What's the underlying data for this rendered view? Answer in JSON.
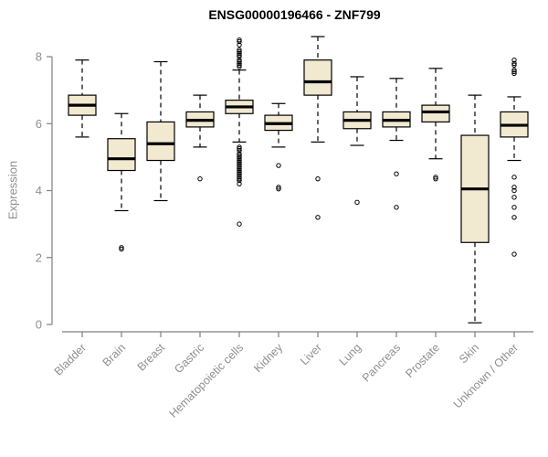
{
  "chart_data": {
    "type": "boxplot",
    "title": "ENSG00000196466 - ZNF799",
    "ylabel": "Expression",
    "ylim": [
      0,
      8.8
    ],
    "yticks": [
      0,
      2,
      4,
      6,
      8
    ],
    "legend": "none",
    "grid": false,
    "colors": {
      "box_fill": "#f1e9d0",
      "box_stroke": "#000000",
      "median": "#000000",
      "whisker": "#000000",
      "axis": "#7f7f7f",
      "tick_text": "#8f8f8f",
      "title_text": "#000000"
    },
    "categories": [
      "Bladder",
      "Brain",
      "Breast",
      "Gastric",
      "Hematopoietic cells",
      "Kidney",
      "Liver",
      "Lung",
      "Pancreas",
      "Prostate",
      "Skin",
      "Unknown / Other"
    ],
    "series": [
      {
        "name": "Bladder",
        "low": 5.6,
        "q1": 6.25,
        "median": 6.55,
        "q3": 6.85,
        "high": 7.9,
        "outliers": []
      },
      {
        "name": "Brain",
        "low": 3.4,
        "q1": 4.6,
        "median": 4.95,
        "q3": 5.55,
        "high": 6.3,
        "outliers": [
          2.3,
          2.25
        ]
      },
      {
        "name": "Breast",
        "low": 3.7,
        "q1": 4.9,
        "median": 5.4,
        "q3": 6.05,
        "high": 7.85,
        "outliers": []
      },
      {
        "name": "Gastric",
        "low": 5.3,
        "q1": 5.9,
        "median": 6.1,
        "q3": 6.35,
        "high": 6.85,
        "outliers": [
          4.35
        ]
      },
      {
        "name": "Hematopoietic cells",
        "low": 5.45,
        "q1": 6.3,
        "median": 6.5,
        "q3": 6.7,
        "high": 7.6,
        "outliers": [
          8.5,
          8.45,
          8.35,
          8.2,
          8.15,
          8.1,
          8.05,
          8.0,
          7.9,
          7.85,
          7.8,
          7.75,
          7.7,
          5.3,
          5.25,
          5.2,
          5.1,
          5.05,
          5.0,
          4.95,
          4.9,
          4.85,
          4.8,
          4.75,
          4.7,
          4.65,
          4.6,
          4.55,
          4.5,
          4.45,
          4.4,
          4.35,
          4.3,
          4.2,
          3.0
        ]
      },
      {
        "name": "Kidney",
        "low": 5.3,
        "q1": 5.8,
        "median": 6.0,
        "q3": 6.25,
        "high": 6.6,
        "outliers": [
          4.75,
          4.1,
          4.05
        ]
      },
      {
        "name": "Liver",
        "low": 5.45,
        "q1": 6.85,
        "median": 7.25,
        "q3": 7.9,
        "high": 8.6,
        "outliers": [
          4.35,
          3.2
        ]
      },
      {
        "name": "Lung",
        "low": 5.35,
        "q1": 5.85,
        "median": 6.1,
        "q3": 6.35,
        "high": 7.4,
        "outliers": [
          3.65
        ]
      },
      {
        "name": "Pancreas",
        "low": 5.5,
        "q1": 5.9,
        "median": 6.1,
        "q3": 6.35,
        "high": 7.35,
        "outliers": [
          4.5,
          3.5
        ]
      },
      {
        "name": "Prostate",
        "low": 4.95,
        "q1": 6.05,
        "median": 6.35,
        "q3": 6.55,
        "high": 7.65,
        "outliers": [
          4.4,
          4.35
        ]
      },
      {
        "name": "Skin",
        "low": 0.05,
        "q1": 2.45,
        "median": 4.05,
        "q3": 5.65,
        "high": 6.85,
        "outliers": []
      },
      {
        "name": "Unknown / Other",
        "low": 4.9,
        "q1": 5.6,
        "median": 5.95,
        "q3": 6.35,
        "high": 6.8,
        "outliers": [
          7.9,
          7.8,
          7.75,
          7.6,
          7.55,
          7.5,
          4.4,
          4.1,
          4.0,
          3.8,
          3.5,
          3.2,
          2.1
        ]
      }
    ]
  }
}
